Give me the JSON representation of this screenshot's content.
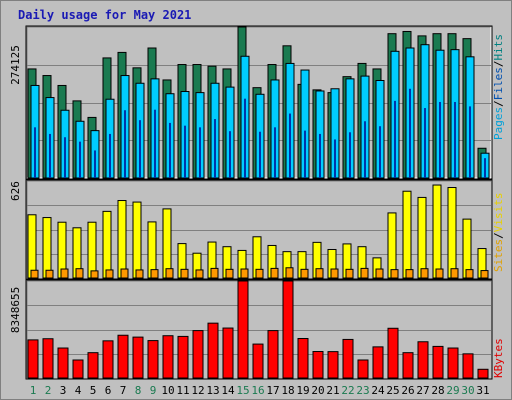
{
  "chart_data": {
    "type": "bar",
    "title": "Daily usage for May 2021",
    "categories": [
      "1",
      "2",
      "3",
      "4",
      "5",
      "6",
      "7",
      "8",
      "9",
      "10",
      "11",
      "12",
      "13",
      "14",
      "15",
      "16",
      "17",
      "18",
      "19",
      "20",
      "21",
      "22",
      "23",
      "24",
      "25",
      "26",
      "27",
      "28",
      "29",
      "30",
      "31"
    ],
    "weekend_days": [
      "1",
      "2",
      "8",
      "9",
      "15",
      "16",
      "22",
      "23",
      "29",
      "30"
    ],
    "panels": [
      {
        "id": "hits",
        "ymax_label": "274125",
        "ylim": [
          0,
          274125
        ],
        "legend": [
          "Pages",
          "/",
          "Files",
          "/",
          "Hits"
        ],
        "legend_colors": [
          "#00a0d8",
          "#000000",
          "#0050b0",
          "#000000",
          "#008080"
        ],
        "series": [
          {
            "name": "Hits",
            "color": "#1a7a50",
            "values": [
              198000,
              186000,
              168000,
              140000,
              110000,
              218000,
              228000,
              200000,
              236000,
              178000,
              206000,
              206000,
              203000,
              198000,
              274125,
              164000,
              206000,
              240000,
              170000,
              160000,
              155000,
              184000,
              208000,
              198000,
              262000,
              266000,
              258000,
              262000,
              262000,
              253000,
              54000
            ]
          },
          {
            "name": "Files",
            "color": "#00ccff",
            "values": [
              168000,
              146000,
              123000,
              103000,
              86000,
              143000,
              186000,
              172000,
              180000,
              153000,
              157000,
              155000,
              172000,
              165000,
              221000,
              152000,
              178000,
              208000,
              196000,
              158000,
              162000,
              180000,
              185000,
              177000,
              230000,
              236000,
              242000,
              232000,
              233000,
              220000,
              45000
            ]
          },
          {
            "name": "Pages",
            "color": "#0033aa",
            "values": [
              92000,
              80000,
              74000,
              66000,
              50000,
              80000,
              123000,
              105000,
              124000,
              100000,
              95000,
              92000,
              107000,
              85000,
              144000,
              84000,
              92000,
              117000,
              86000,
              80000,
              70000,
              83000,
              103000,
              94000,
              140000,
              162000,
              127000,
              138000,
              138000,
              130000,
              36000
            ]
          }
        ]
      },
      {
        "id": "visits",
        "ymax_label": "626",
        "ylim": [
          0,
          626
        ],
        "legend": [
          "Sites",
          "/",
          "Visits"
        ],
        "legend_colors": [
          "#e0a000",
          "#000000",
          "#e8d000"
        ],
        "series": [
          {
            "name": "Visits",
            "color": "#ffff00",
            "values": [
              408,
              390,
              360,
              324,
              360,
              430,
              500,
              490,
              362,
              446,
              222,
              160,
              232,
              202,
              178,
              266,
              210,
              170,
              170,
              230,
              184,
              220,
              202,
              130,
              420,
              560,
              520,
              600,
              584,
              380,
              190
            ]
          },
          {
            "name": "Sites",
            "color": "#ff9900",
            "values": [
              50,
              50,
              58,
              60,
              46,
              52,
              58,
              52,
              54,
              60,
              56,
              52,
              62,
              56,
              58,
              56,
              62,
              66,
              56,
              60,
              58,
              56,
              62,
              58,
              54,
              54,
              60,
              58,
              60,
              54,
              48
            ]
          }
        ]
      },
      {
        "id": "kbytes",
        "ymax_label": "8348655",
        "ylim": [
          0,
          8348655
        ],
        "legend": [
          "KBytes"
        ],
        "legend_colors": [
          "#e00000"
        ],
        "series": [
          {
            "name": "KBytes",
            "color": "#ff0000",
            "values": [
              3280000,
              3380000,
              2580000,
              1550000,
              2180000,
              3200000,
              3680000,
              3520000,
              3220000,
              3640000,
              3580000,
              4080000,
              4720000,
              4300000,
              8348655,
              2920000,
              4080000,
              8348655,
              3400000,
              2280000,
              2270000,
              3320000,
              1550000,
              2680000,
              4280000,
              2180000,
              3120000,
              2720000,
              2580000,
              2080000,
              750000
            ]
          }
        ]
      }
    ]
  }
}
